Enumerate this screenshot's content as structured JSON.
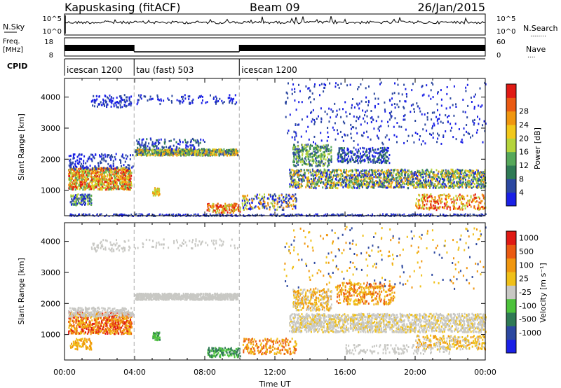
{
  "header": {
    "station": "Kapuskasing (fitACF)",
    "beam": "Beam 09",
    "date": "26/Jan/2015"
  },
  "noise_panel": {
    "left_label": "N.Sky",
    "right_label": "N.Search",
    "right_legend": "........",
    "left_ticks": [
      "10^5",
      "10^0"
    ],
    "right_ticks": [
      "10^5",
      "10^0"
    ]
  },
  "freq_panel": {
    "left_label_1": "Freq.",
    "left_label_2": "[MHz]",
    "right_label": "Nave",
    "right_legend": "....",
    "left_ticks": [
      "18",
      "8"
    ],
    "right_ticks": [
      "60",
      "0"
    ]
  },
  "cpid_panel": {
    "label": "CPID",
    "segments": [
      {
        "start_hour": 0,
        "end_hour": 3.97,
        "name": "icescan 1200"
      },
      {
        "start_hour": 3.97,
        "end_hour": 9.97,
        "name": "tau (fast) 503"
      },
      {
        "start_hour": 9.97,
        "end_hour": 24,
        "name": "icescan 1200"
      }
    ]
  },
  "chart_data": [
    {
      "type": "heatmap",
      "title": "",
      "quantity": "Power",
      "ylabel": "Slant Range [km]",
      "xlabel": "",
      "xlim_hours": [
        0,
        24
      ],
      "ylim": [
        180,
        4600
      ],
      "yticks": [
        "1000",
        "2000",
        "3000",
        "4000"
      ],
      "colorbar": {
        "label": "Power [dB]",
        "ticks": [
          "4",
          "8",
          "12",
          "16",
          "20",
          "24",
          "28"
        ],
        "colors": [
          "#1a20e6",
          "#2c48a0",
          "#2f7a55",
          "#56a85a",
          "#b5d43c",
          "#f2c81a",
          "#f0960f",
          "#ea5a12",
          "#e01a14"
        ]
      }
    },
    {
      "type": "heatmap",
      "title": "",
      "quantity": "Velocity",
      "ylabel": "Slant Range [km]",
      "xlabel": "Time UT",
      "xlim_hours": [
        0,
        24
      ],
      "ylim": [
        180,
        4600
      ],
      "yticks": [
        "1000",
        "2000",
        "3000",
        "4000"
      ],
      "xticks": [
        "00:00",
        "04:00",
        "08:00",
        "12:00",
        "16:00",
        "20:00",
        "00:00"
      ],
      "colorbar": {
        "label": "Velocity [m s⁻¹]",
        "ticks": [
          "1000",
          "500",
          "100",
          "25",
          "-25",
          "-100",
          "-500",
          "-1000"
        ],
        "colors": [
          "#1a20e6",
          "#2c48a0",
          "#2f7a55",
          "#4dc23c",
          "#c8c8c4",
          "#f0c018",
          "#f0960f",
          "#ea5a12",
          "#e01a14"
        ]
      }
    }
  ]
}
